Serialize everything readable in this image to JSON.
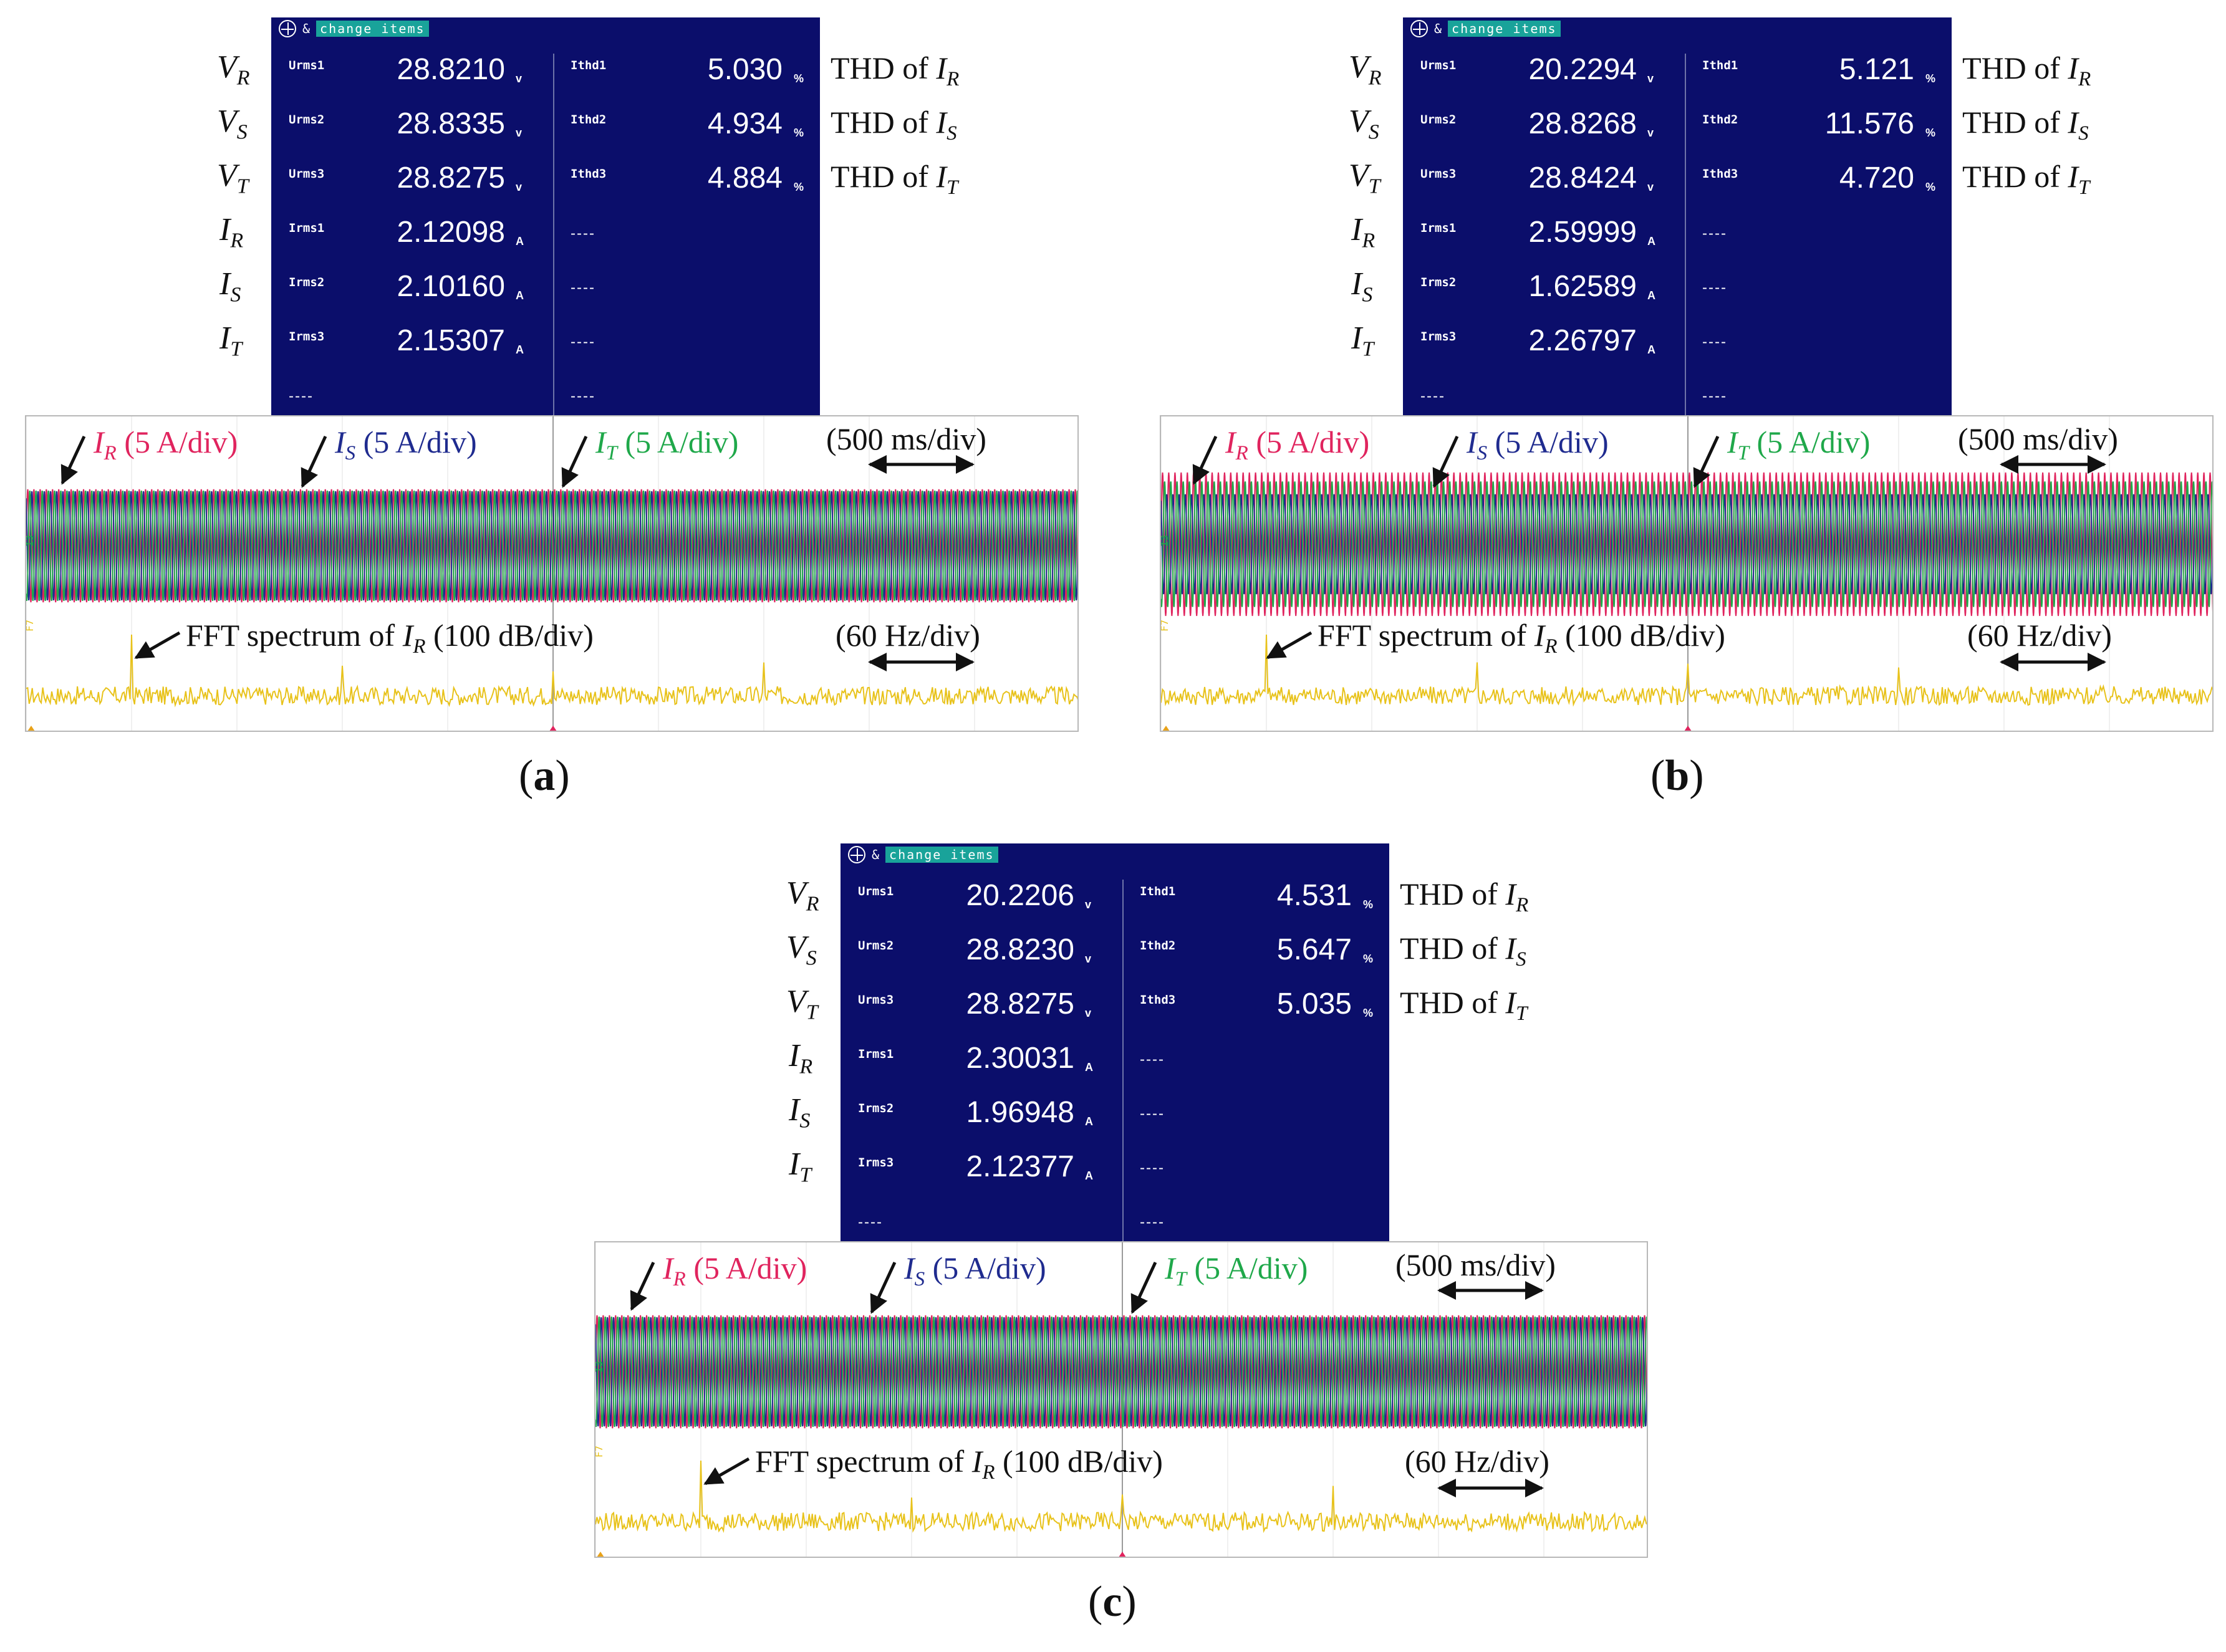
{
  "meter_common": {
    "badge": "change items",
    "amp": "&",
    "volt_unit": "v",
    "amp_unit": "A",
    "pct_unit": "%",
    "dashes": "----"
  },
  "row_labels": {
    "vr": "V",
    "vr_sub": "R",
    "vs": "V",
    "vs_sub": "S",
    "vt": "V",
    "vt_sub": "T",
    "ir": "I",
    "ir_sub": "R",
    "is": "I",
    "is_sub": "S",
    "it": "I",
    "it_sub": "T"
  },
  "thd_labels": {
    "prefix": "THD of",
    "i": "I",
    "r": "R",
    "s": "S",
    "t": "T"
  },
  "annotations": {
    "ir": "I",
    "ir_sub": "R",
    "ir_scale": "(5 A/div)",
    "is": "I",
    "is_sub": "S",
    "is_scale": "(5 A/div)",
    "it": "I",
    "it_sub": "T",
    "it_scale": "(5 A/div)",
    "time": "(500 ms/div)",
    "fft_prefix": "FFT spectrum of",
    "fft_i": "I",
    "fft_sub": "R",
    "fft_scale": "(100 dB/div)",
    "freq": "(60 Hz/div)"
  },
  "colors": {
    "ir": "#e0245e",
    "is": "#1f2b8f",
    "it": "#1fa84a",
    "fft": "#e8c21a",
    "meter_bg": "#0b0e6b"
  },
  "panels": [
    {
      "caption": "a",
      "rms_tags": [
        "Urms1",
        "Urms2",
        "Urms3",
        "Irms1",
        "Irms2",
        "Irms3"
      ],
      "rms_values": [
        "28.8210",
        "28.8335",
        "28.8275",
        "2.12098",
        "2.10160",
        "2.15307"
      ],
      "thd_tags": [
        "Ithd1",
        "Ithd2",
        "Ithd3"
      ],
      "thd_values": [
        "5.030",
        "4.934",
        "4.884"
      ]
    },
    {
      "caption": "b",
      "rms_tags": [
        "Urms1",
        "Urms2",
        "Urms3",
        "Irms1",
        "Irms2",
        "Irms3"
      ],
      "rms_values": [
        "20.2294",
        "28.8268",
        "28.8424",
        "2.59999",
        "1.62589",
        "2.26797"
      ],
      "thd_tags": [
        "Ithd1",
        "Ithd2",
        "Ithd3"
      ],
      "thd_values": [
        "5.121",
        "11.576",
        "4.720"
      ]
    },
    {
      "caption": "c",
      "rms_tags": [
        "Urms1",
        "Urms2",
        "Urms3",
        "Irms1",
        "Irms2",
        "Irms3"
      ],
      "rms_values": [
        "20.2206",
        "28.8230",
        "28.8275",
        "2.30031",
        "1.96948",
        "2.12377"
      ],
      "thd_tags": [
        "Ithd1",
        "Ithd2",
        "Ithd3"
      ],
      "thd_values": [
        "4.531",
        "5.647",
        "5.035"
      ]
    }
  ]
}
